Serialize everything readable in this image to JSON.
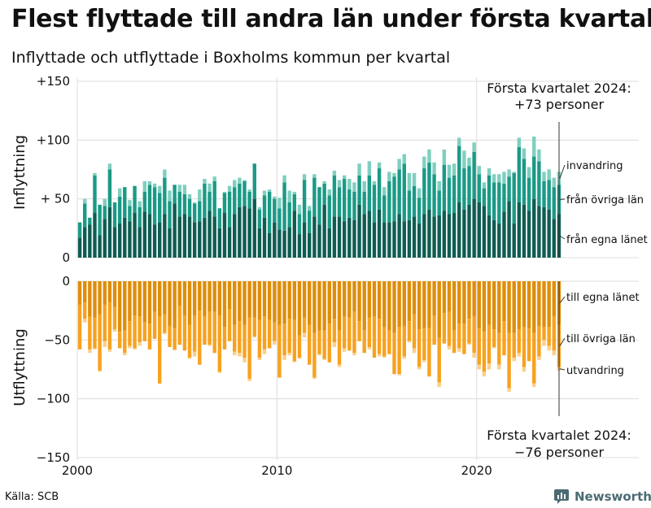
{
  "title": "Flest flyttade till andra län under första kvartalet",
  "subtitle": "Inflyttade och utflyttade i Boxholms kommun per kvartal",
  "source": "Källa: SCB",
  "brand": "Newsworthy",
  "colors": {
    "in_own": "#0f5c52",
    "in_other": "#1b9a86",
    "in_immig": "#7fcfbf",
    "out_own": "#df8e0b",
    "out_other": "#f7a21f",
    "out_emig": "#fcd08a",
    "grid": "#dcdcdc",
    "brand": "#4b6b73"
  },
  "chart_data": {
    "type": "bar",
    "stacked": true,
    "x_axis": {
      "range": [
        2000,
        2024.25
      ],
      "ticks": [
        "2000",
        "2010",
        "2020"
      ]
    },
    "grid": true,
    "panels": [
      {
        "name": "inflyttning",
        "ylabel": "Inflyttning",
        "ylim": [
          0,
          150
        ],
        "yticks": [
          0,
          50,
          100,
          150
        ],
        "ytick_labels": [
          "0",
          "+ 50",
          "+100",
          "+150"
        ]
      },
      {
        "name": "utflyttning",
        "ylabel": "Utflyttning",
        "ylim": [
          -150,
          0
        ],
        "yticks": [
          0,
          -50,
          -100,
          -150
        ],
        "ytick_labels": [
          "0",
          "−50",
          "−100",
          "−150"
        ]
      }
    ],
    "series": [
      {
        "name": "från egna länet",
        "panel": "inflyttning"
      },
      {
        "name": "från övriga län",
        "panel": "inflyttning"
      },
      {
        "name": "invandring",
        "panel": "inflyttning"
      },
      {
        "name": "till egna länet",
        "panel": "utflyttning"
      },
      {
        "name": "till övriga län",
        "panel": "utflyttning"
      },
      {
        "name": "utvandring",
        "panel": "utflyttning"
      }
    ],
    "annotations": [
      {
        "panel": "inflyttning",
        "lines": [
          "Första kvartalet 2024:",
          "+73 personer"
        ]
      },
      {
        "panel": "utflyttning",
        "lines": [
          "Första kvartalet 2024:",
          "−76 personer"
        ]
      }
    ],
    "quarters": [
      "2000 Q1",
      "2000 Q2",
      "2000 Q3",
      "2000 Q4",
      "2001 Q1",
      "2001 Q2",
      "2001 Q3",
      "2001 Q4",
      "2002 Q1",
      "2002 Q2",
      "2002 Q3",
      "2002 Q4",
      "2003 Q1",
      "2003 Q2",
      "2003 Q3",
      "2003 Q4",
      "2004 Q1",
      "2004 Q2",
      "2004 Q3",
      "2004 Q4",
      "2005 Q1",
      "2005 Q2",
      "2005 Q3",
      "2005 Q4",
      "2006 Q1",
      "2006 Q2",
      "2006 Q3",
      "2006 Q4",
      "2007 Q1",
      "2007 Q2",
      "2007 Q3",
      "2007 Q4",
      "2008 Q1",
      "2008 Q2",
      "2008 Q3",
      "2008 Q4",
      "2009 Q1",
      "2009 Q2",
      "2009 Q3",
      "2009 Q4",
      "2010 Q1",
      "2010 Q2",
      "2010 Q3",
      "2010 Q4",
      "2011 Q1",
      "2011 Q2",
      "2011 Q3",
      "2011 Q4",
      "2012 Q1",
      "2012 Q2",
      "2012 Q3",
      "2012 Q4",
      "2013 Q1",
      "2013 Q2",
      "2013 Q3",
      "2013 Q4",
      "2014 Q1",
      "2014 Q2",
      "2014 Q3",
      "2014 Q4",
      "2015 Q1",
      "2015 Q2",
      "2015 Q3",
      "2015 Q4",
      "2016 Q1",
      "2016 Q2",
      "2016 Q3",
      "2016 Q4",
      "2017 Q1",
      "2017 Q2",
      "2017 Q3",
      "2017 Q4",
      "2018 Q1",
      "2018 Q2",
      "2018 Q3",
      "2018 Q4",
      "2019 Q1",
      "2019 Q2",
      "2019 Q3",
      "2019 Q4",
      "2020 Q1",
      "2020 Q2",
      "2020 Q3",
      "2020 Q4",
      "2021 Q1",
      "2021 Q2",
      "2021 Q3",
      "2021 Q4",
      "2022 Q1",
      "2022 Q2",
      "2022 Q3",
      "2022 Q4",
      "2023 Q1",
      "2023 Q2",
      "2023 Q3",
      "2023 Q4",
      "2024 Q1"
    ],
    "inflyttning_fran_egna_lanet": [
      17,
      26,
      28,
      38,
      19,
      33,
      43,
      26,
      29,
      34,
      31,
      38,
      26,
      39,
      37,
      28,
      30,
      37,
      25,
      46,
      35,
      37,
      35,
      30,
      31,
      34,
      40,
      35,
      25,
      38,
      26,
      37,
      43,
      44,
      42,
      50,
      25,
      34,
      21,
      30,
      24,
      23,
      26,
      40,
      20,
      30,
      21,
      35,
      28,
      45,
      25,
      35,
      35,
      31,
      34,
      32,
      45,
      37,
      40,
      30,
      41,
      30,
      30,
      31,
      37,
      31,
      32,
      35,
      29,
      37,
      41,
      35,
      36,
      40,
      37,
      38,
      47,
      41,
      45,
      50,
      47,
      44,
      36,
      32,
      29,
      39,
      48,
      29,
      47,
      45,
      40,
      50,
      44,
      43,
      41,
      33,
      37
    ],
    "inflyttning_fran_ovriga_lan": [
      13,
      20,
      6,
      32,
      26,
      11,
      32,
      21,
      23,
      26,
      13,
      23,
      17,
      17,
      25,
      32,
      25,
      31,
      23,
      16,
      21,
      17,
      15,
      16,
      17,
      29,
      16,
      30,
      17,
      17,
      30,
      23,
      20,
      21,
      14,
      30,
      16,
      19,
      35,
      20,
      18,
      41,
      21,
      14,
      17,
      36,
      19,
      33,
      32,
      18,
      28,
      35,
      25,
      36,
      24,
      24,
      25,
      19,
      30,
      32,
      35,
      23,
      35,
      38,
      38,
      49,
      25,
      26,
      22,
      39,
      40,
      36,
      21,
      39,
      31,
      32,
      48,
      35,
      33,
      40,
      24,
      15,
      34,
      32,
      35,
      24,
      21,
      43,
      47,
      39,
      28,
      36,
      38,
      22,
      25,
      27,
      25
    ],
    "inflyttning_invandring": [
      0,
      4,
      0,
      2,
      0,
      6,
      5,
      0,
      7,
      0,
      5,
      0,
      5,
      9,
      3,
      3,
      6,
      7,
      9,
      0,
      6,
      8,
      4,
      1,
      10,
      4,
      7,
      4,
      0,
      1,
      5,
      6,
      5,
      1,
      2,
      0,
      2,
      4,
      2,
      2,
      9,
      6,
      10,
      2,
      8,
      5,
      4,
      3,
      0,
      2,
      5,
      4,
      6,
      3,
      9,
      8,
      10,
      9,
      12,
      3,
      5,
      7,
      8,
      3,
      9,
      8,
      15,
      11,
      8,
      10,
      11,
      10,
      8,
      13,
      11,
      10,
      7,
      15,
      7,
      8,
      7,
      5,
      6,
      7,
      7,
      10,
      6,
      1,
      8,
      9,
      9,
      17,
      10,
      8,
      9,
      8,
      11
    ],
    "utflyttning_till_egna_lanet": [
      20,
      18,
      30,
      31,
      28,
      20,
      18,
      22,
      43,
      42,
      34,
      29,
      30,
      35,
      36,
      26,
      30,
      28,
      38,
      40,
      21,
      29,
      37,
      29,
      25,
      30,
      26,
      26,
      29,
      39,
      24,
      37,
      34,
      37,
      31,
      31,
      33,
      30,
      33,
      35,
      37,
      36,
      32,
      33,
      46,
      31,
      37,
      44,
      42,
      42,
      36,
      32,
      42,
      30,
      31,
      26,
      34,
      42,
      31,
      30,
      32,
      39,
      42,
      44,
      39,
      38,
      34,
      28,
      41,
      40,
      40,
      29,
      48,
      27,
      26,
      42,
      36,
      36,
      32,
      30,
      40,
      43,
      37,
      41,
      44,
      34,
      44,
      44,
      41,
      39,
      40,
      44,
      38,
      39,
      39,
      30,
      37
    ],
    "utflyttning_till_ovriga_lan": [
      38,
      14,
      28,
      26,
      48,
      31,
      40,
      19,
      14,
      19,
      21,
      28,
      22,
      16,
      22,
      23,
      57,
      16,
      18,
      18,
      33,
      30,
      28,
      31,
      46,
      24,
      28,
      35,
      48,
      19,
      27,
      23,
      27,
      28,
      52,
      16,
      32,
      28,
      24,
      16,
      45,
      27,
      29,
      35,
      19,
      13,
      34,
      38,
      20,
      24,
      33,
      20,
      29,
      27,
      28,
      35,
      17,
      19,
      25,
      35,
      30,
      25,
      20,
      35,
      40,
      26,
      17,
      29,
      32,
      27,
      41,
      25,
      38,
      26,
      29,
      19,
      21,
      26,
      21,
      31,
      31,
      34,
      33,
      15,
      27,
      29,
      47,
      21,
      20,
      34,
      28,
      43,
      26,
      11,
      16,
      29,
      36
    ],
    "utflyttning_utvandring": [
      0,
      3,
      3,
      1,
      1,
      5,
      2,
      2,
      0,
      2,
      2,
      1,
      3,
      0,
      0,
      0,
      0,
      1,
      0,
      1,
      0,
      0,
      1,
      4,
      0,
      0,
      1,
      0,
      1,
      0,
      0,
      3,
      3,
      4,
      2,
      1,
      2,
      4,
      0,
      3,
      0,
      4,
      2,
      1,
      1,
      4,
      0,
      1,
      1,
      1,
      0,
      4,
      2,
      3,
      0,
      2,
      0,
      0,
      2,
      0,
      2,
      1,
      0,
      0,
      1,
      2,
      1,
      4,
      2,
      2,
      0,
      0,
      4,
      0,
      3,
      0,
      3,
      0,
      1,
      4,
      4,
      4,
      5,
      1,
      4,
      0,
      3,
      3,
      3,
      4,
      0,
      3,
      3,
      5,
      4,
      4,
      3
    ]
  }
}
